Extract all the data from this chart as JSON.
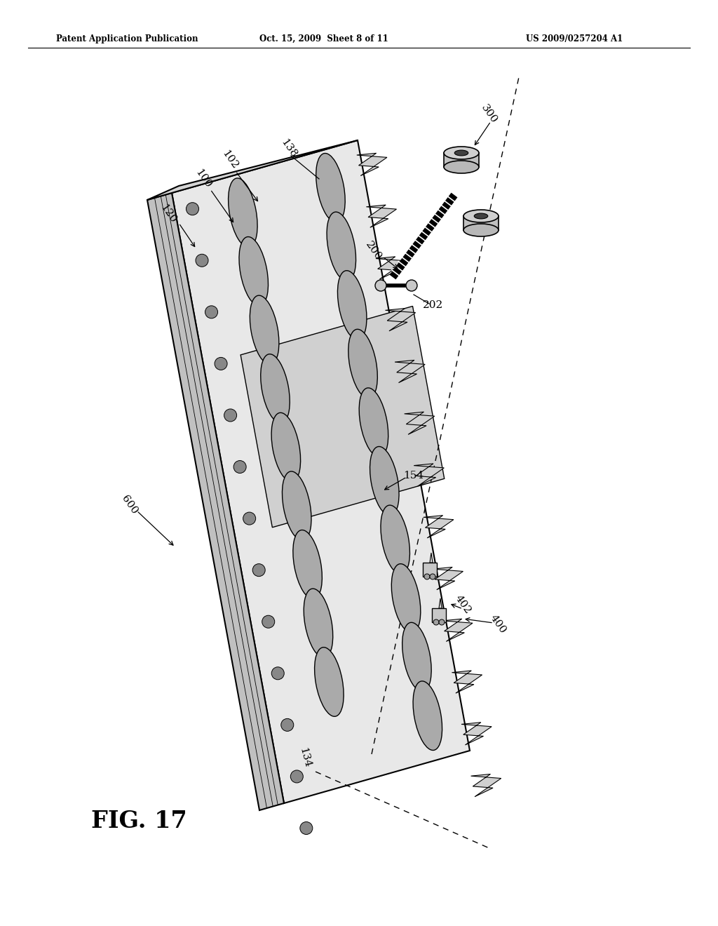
{
  "background_color": "#ffffff",
  "header_left": "Patent Application Publication",
  "header_center": "Oct. 15, 2009  Sheet 8 of 11",
  "header_right": "US 2009/0257204 A1",
  "figure_label": "FIG. 17"
}
